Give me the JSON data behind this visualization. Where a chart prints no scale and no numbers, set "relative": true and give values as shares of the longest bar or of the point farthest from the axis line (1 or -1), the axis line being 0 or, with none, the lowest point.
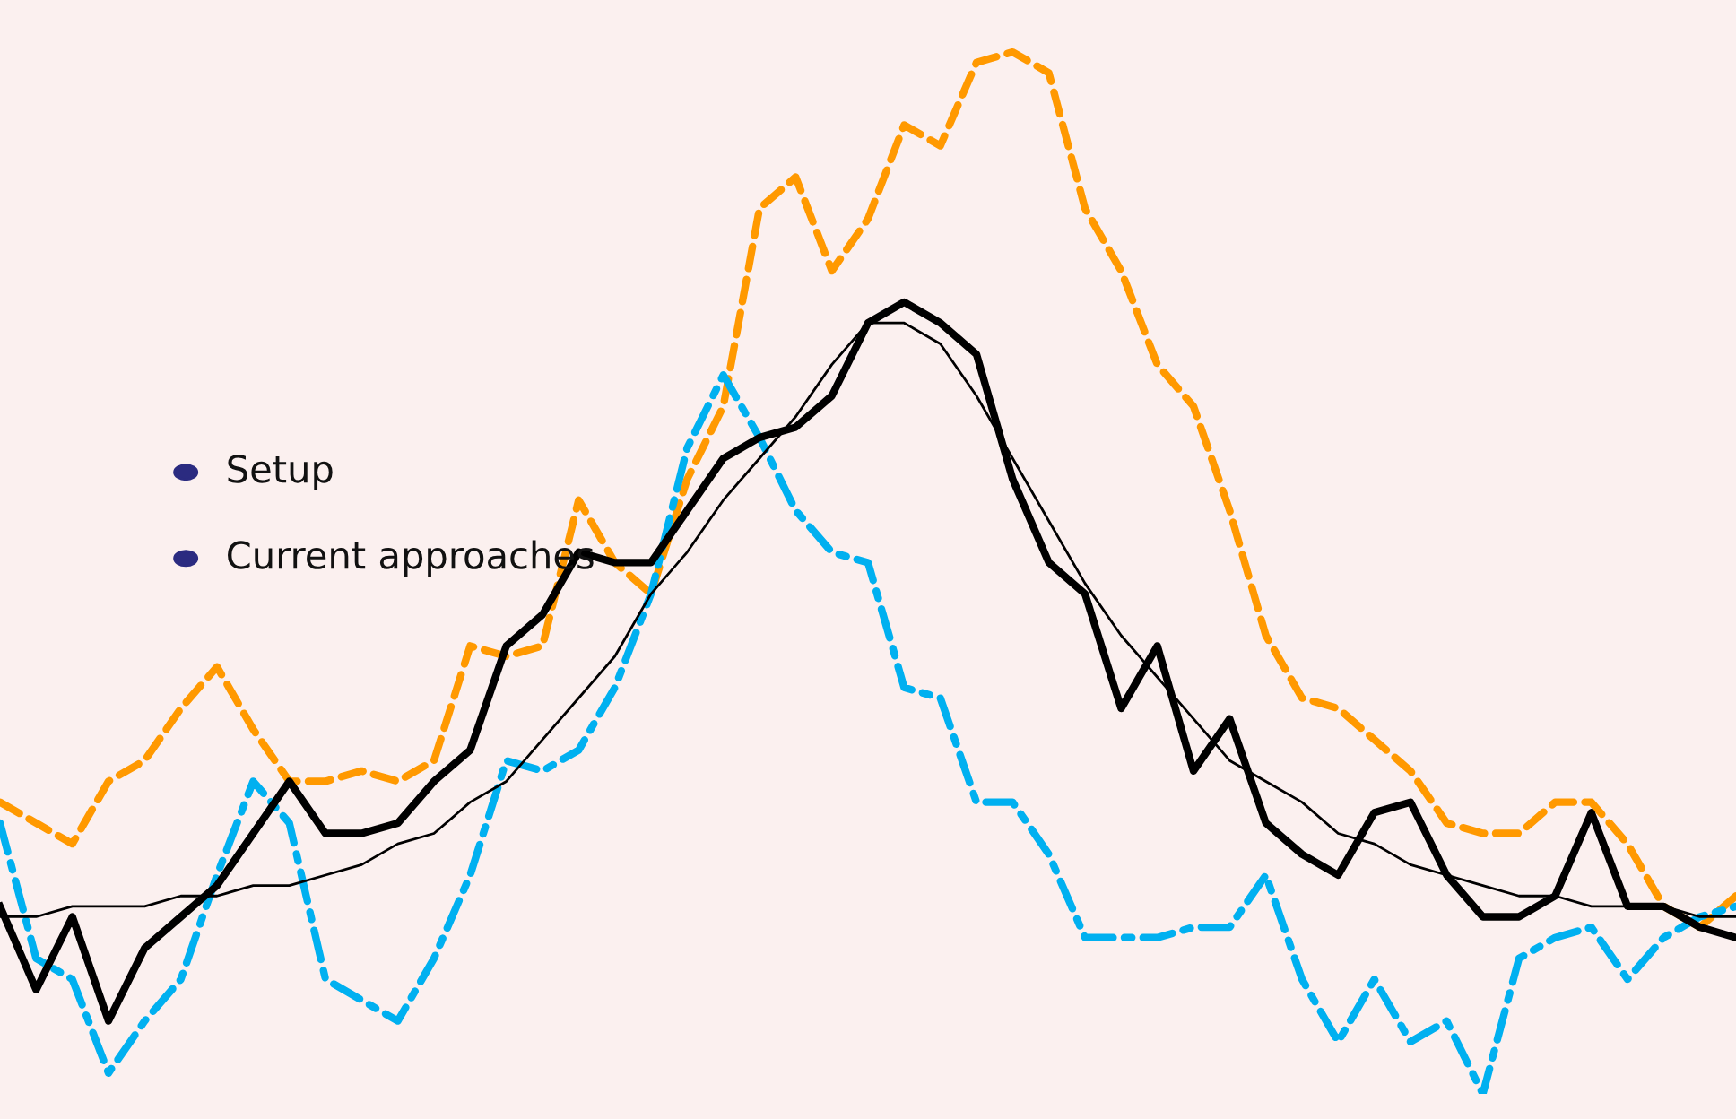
{
  "chart_data": {
    "type": "line",
    "relative": true,
    "marker": "none",
    "legend": false,
    "categories": [
      null,
      null,
      null,
      null,
      null,
      null,
      null,
      null,
      null,
      null,
      null,
      null,
      null,
      null,
      null,
      null,
      null,
      null,
      null,
      null,
      null,
      null,
      null,
      null,
      null,
      null,
      null,
      null,
      null,
      null,
      null,
      null,
      null,
      null,
      null,
      null,
      null,
      null,
      null,
      null,
      null,
      null,
      null,
      null,
      null,
      null,
      null,
      null,
      null
    ],
    "annotations": [
      "Setup",
      "Current approaches"
    ],
    "series": [
      {
        "color": "#ff9900",
        "line_style": "dashed",
        "values": [
          0.28,
          0.26,
          0.24,
          0.3,
          0.32,
          0.37,
          0.41,
          0.35,
          0.3,
          0.3,
          0.31,
          0.3,
          0.32,
          0.43,
          0.42,
          0.43,
          0.57,
          0.51,
          0.48,
          0.59,
          0.66,
          0.85,
          0.88,
          0.79,
          0.84,
          0.93,
          0.91,
          0.99,
          1,
          0.98,
          0.85,
          0.79,
          0.7,
          0.66,
          0.56,
          0.44,
          0.38,
          0.37,
          0.34,
          0.31,
          0.26,
          0.25,
          0.25,
          0.28,
          0.28,
          0.24,
          0.18,
          0.16,
          0.19
        ]
      },
      {
        "color": "#00b0f0",
        "line_style": "dashdot",
        "values": [
          0.26,
          0.13,
          0.11,
          0.02,
          0.07,
          0.11,
          0.21,
          0.3,
          0.26,
          0.11,
          0.09,
          0.07,
          0.13,
          0.21,
          0.32,
          0.31,
          0.33,
          0.39,
          0.48,
          0.62,
          0.69,
          0.63,
          0.56,
          0.52,
          0.51,
          0.39,
          0.38,
          0.28,
          0.28,
          0.23,
          0.15,
          0.15,
          0.15,
          0.16,
          0.16,
          0.21,
          0.11,
          0.05,
          0.11,
          0.05,
          0.07,
          0,
          0.13,
          0.15,
          0.16,
          0.11,
          0.15,
          0.17,
          0.18
        ]
      },
      {
        "color": "#000000",
        "line_style": "solid",
        "values": [
          0.18,
          0.1,
          0.17,
          0.07,
          0.14,
          0.17,
          0.2,
          0.25,
          0.3,
          0.25,
          0.25,
          0.26,
          0.3,
          0.33,
          0.43,
          0.46,
          0.52,
          0.51,
          0.51,
          0.56,
          0.61,
          0.63,
          0.64,
          0.67,
          0.74,
          0.76,
          0.74,
          0.71,
          0.59,
          0.51,
          0.48,
          0.37,
          0.43,
          0.31,
          0.36,
          0.26,
          0.23,
          0.21,
          0.27,
          0.28,
          0.21,
          0.17,
          0.17,
          0.19,
          0.27,
          0.18,
          0.18,
          0.16,
          0.15
        ]
      },
      {
        "color": "#000000",
        "line_style": "solid",
        "values": [
          0.17,
          0.17,
          0.18,
          0.18,
          0.18,
          0.19,
          0.19,
          0.2,
          0.2,
          0.21,
          0.22,
          0.24,
          0.25,
          0.28,
          0.3,
          0.34,
          0.38,
          0.42,
          0.48,
          0.52,
          0.57,
          0.61,
          0.65,
          0.7,
          0.74,
          0.74,
          0.72,
          0.67,
          0.61,
          0.55,
          0.49,
          0.44,
          0.4,
          0.36,
          0.32,
          0.3,
          0.28,
          0.25,
          0.24,
          0.22,
          0.21,
          0.2,
          0.19,
          0.19,
          0.18,
          0.18,
          0.18,
          0.17,
          0.17
        ]
      }
    ]
  }
}
